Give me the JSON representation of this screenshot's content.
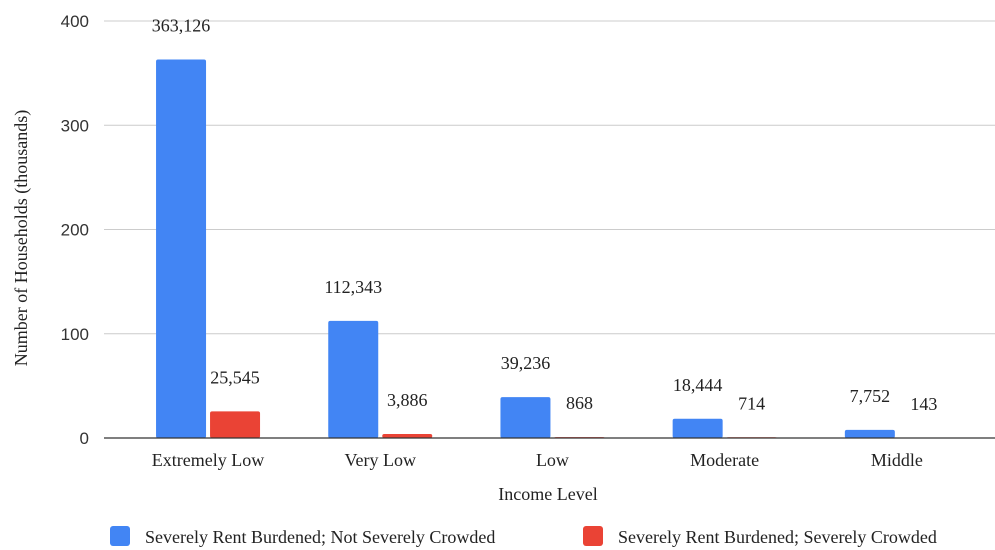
{
  "chart_data": {
    "type": "bar",
    "title": "",
    "xlabel": "Income Level",
    "ylabel": "Number of Households (thousands)",
    "ylim": [
      0,
      400
    ],
    "yticks": [
      0,
      100,
      200,
      300,
      400
    ],
    "grid": true,
    "legend_position": "bottom",
    "categories": [
      "Extremely Low",
      "Very Low",
      "Low",
      "Moderate",
      "Middle"
    ],
    "series": [
      {
        "name": "Severely Rent Burdened; Not Severely Crowded",
        "color": "#4285f4",
        "values": [
          363.126,
          112.343,
          39.236,
          18.444,
          7.752
        ],
        "labels": [
          "363,126",
          "112,343",
          "39,236",
          "18,444",
          "7,752"
        ]
      },
      {
        "name": "Severely Rent Burdened; Severely Crowded",
        "color": "#ea4335",
        "values": [
          25.545,
          3.886,
          0.868,
          0.714,
          0.143
        ],
        "labels": [
          "25,545",
          "3,886",
          "868",
          "714",
          "143"
        ]
      }
    ]
  }
}
